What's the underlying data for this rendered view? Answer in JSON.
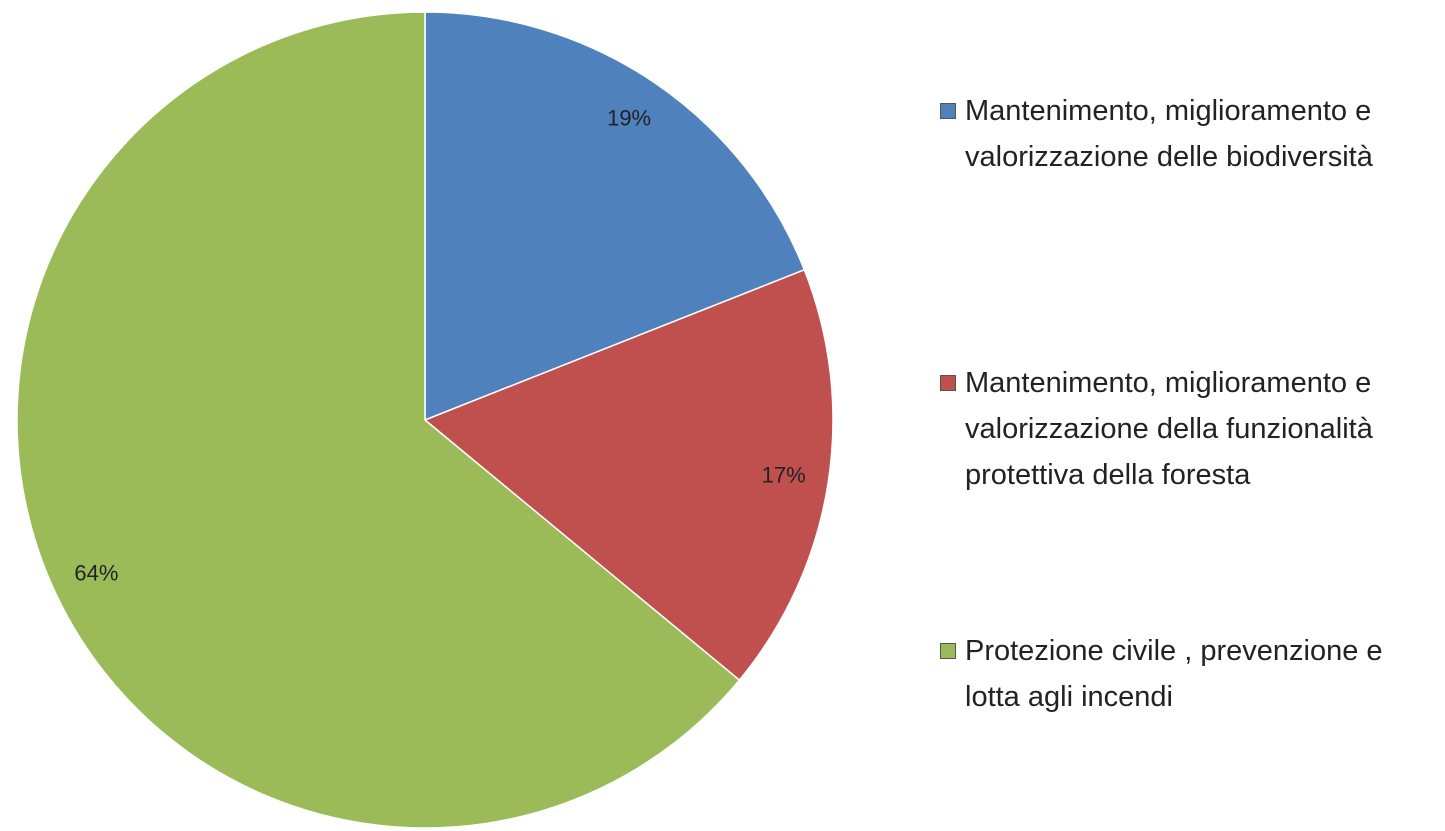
{
  "chart_data": {
    "type": "pie",
    "categories": [
      "Mantenimento, miglioramento e valorizzazione delle biodiversità",
      "Mantenimento, miglioramento e valorizzazione della funzionalità protettiva della foresta",
      "Protezione civile , prevenzione e lotta agli incendi"
    ],
    "values": [
      19,
      17,
      64
    ],
    "value_labels": [
      "19%",
      "17%",
      "64%"
    ],
    "colors": [
      "#4f81bd",
      "#c0504d",
      "#9bbb59"
    ],
    "legend": "right"
  }
}
